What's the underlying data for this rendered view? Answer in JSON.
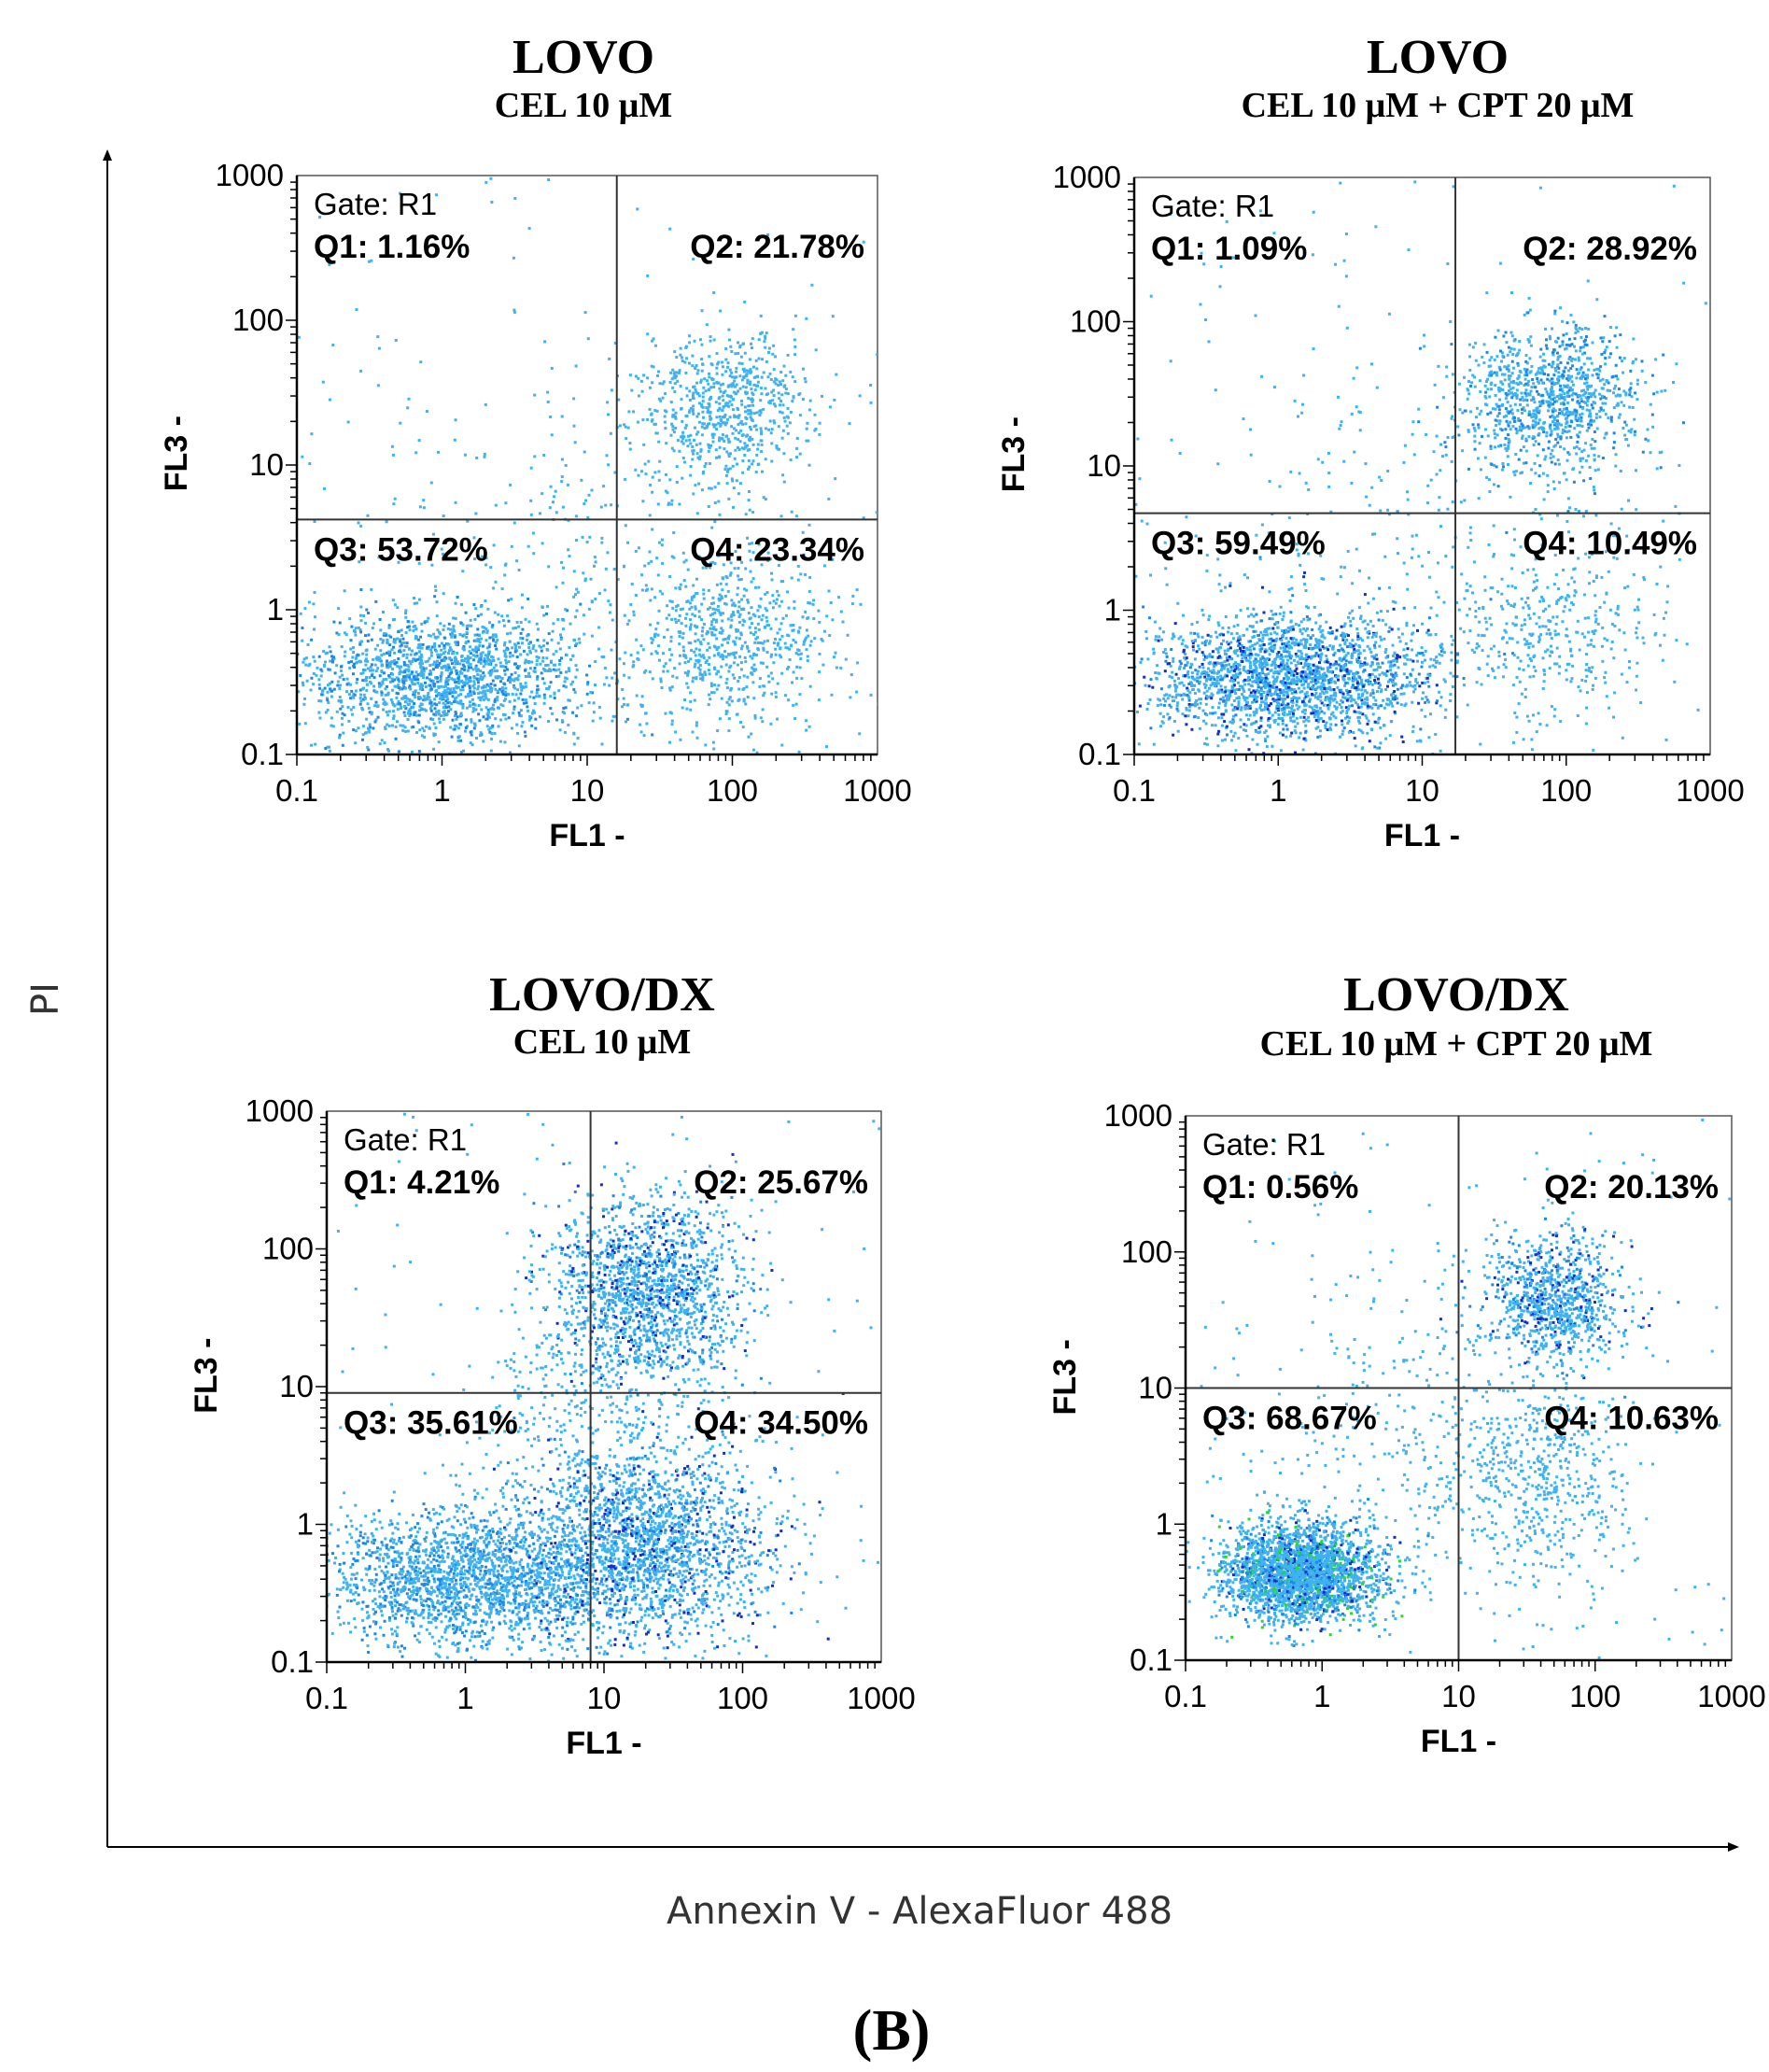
{
  "outer_y_label": "PI",
  "outer_x_label": "Annexin V - AlexaFluor 488",
  "figure_label": "(B)",
  "colors": {
    "dot_light": "#3fb2f0",
    "dot_mid": "#1e88e5",
    "dot_dense": "#1230c8",
    "dot_peak": "#22dd22",
    "axis": "#000000",
    "gate_line": "#333333"
  },
  "chart_data": [
    {
      "type": "scatter",
      "title": "LOVO",
      "subtitle": "CEL 10 μM",
      "xlabel": "FL1  -",
      "ylabel": "FL3  -",
      "xscale": "log",
      "yscale": "log",
      "xlim": [
        0.1,
        1000
      ],
      "ylim": [
        0.1,
        1000
      ],
      "x_ticks": [
        "0.1",
        "1",
        "10",
        "100",
        "1000"
      ],
      "y_ticks": [
        "0.1",
        "1",
        "10",
        "100",
        "1000"
      ],
      "gate": "Gate: R1",
      "gate_x": 16,
      "gate_y": 4.2,
      "quadrants": {
        "q1": "Q1: 1.16%",
        "q2": "Q2: 21.78%",
        "q3": "Q3: 53.72%",
        "q4": "Q4: 23.34%"
      },
      "clusters": [
        {
          "x": 1.0,
          "y": 0.35,
          "sx": 0.5,
          "sy": 0.22,
          "n": 1700,
          "density": 2
        },
        {
          "x": 90,
          "y": 0.6,
          "sx": 0.35,
          "sy": 0.3,
          "n": 700,
          "density": 1
        },
        {
          "x": 90,
          "y": 25,
          "sx": 0.3,
          "sy": 0.25,
          "n": 700,
          "density": 1
        },
        {
          "x": 10,
          "y": 3,
          "sx": 0.8,
          "sy": 0.7,
          "n": 300,
          "density": 0
        }
      ]
    },
    {
      "type": "scatter",
      "title": "LOVO",
      "subtitle": "CEL 10 μM + CPT 20 μM",
      "xlabel": "FL1  -",
      "ylabel": "FL3  -",
      "xscale": "log",
      "yscale": "log",
      "xlim": [
        0.1,
        1000
      ],
      "ylim": [
        0.1,
        1000
      ],
      "x_ticks": [
        "0.1",
        "1",
        "10",
        "100",
        "1000"
      ],
      "y_ticks": [
        "0.1",
        "1",
        "10",
        "100",
        "1000"
      ],
      "gate": "Gate: R1",
      "gate_x": 17,
      "gate_y": 4.7,
      "quadrants": {
        "q1": "Q1: 1.09%",
        "q2": "Q2: 28.92%",
        "q3": "Q3: 59.49%",
        "q4": "Q4: 10.49%"
      },
      "clusters": [
        {
          "x": 1.2,
          "y": 0.35,
          "sx": 0.5,
          "sy": 0.22,
          "n": 2200,
          "density": 3
        },
        {
          "x": 80,
          "y": 30,
          "sx": 0.3,
          "sy": 0.25,
          "n": 1000,
          "density": 2
        },
        {
          "x": 80,
          "y": 0.8,
          "sx": 0.35,
          "sy": 0.35,
          "n": 350,
          "density": 0
        },
        {
          "x": 10,
          "y": 3,
          "sx": 0.8,
          "sy": 0.7,
          "n": 250,
          "density": 0
        }
      ]
    },
    {
      "type": "scatter",
      "title": "LOVO/DX",
      "subtitle": "CEL 10 μM",
      "xlabel": "FL1  -",
      "ylabel": "FL3  -",
      "xscale": "log",
      "yscale": "log",
      "xlim": [
        0.1,
        1000
      ],
      "ylim": [
        0.1,
        1000
      ],
      "x_ticks": [
        "0.1",
        "1",
        "10",
        "100",
        "1000"
      ],
      "y_ticks": [
        "0.1",
        "1",
        "10",
        "100",
        "1000"
      ],
      "gate": "Gate: R1",
      "gate_x": 8,
      "gate_y": 9,
      "quadrants": {
        "q1": "Q1: 4.21%",
        "q2": "Q2: 25.67%",
        "q3": "Q3: 35.61%",
        "q4": "Q4: 34.50%"
      },
      "clusters": [
        {
          "x": 1.0,
          "y": 0.4,
          "sx": 0.55,
          "sy": 0.25,
          "n": 2000,
          "density": 2
        },
        {
          "x": 20,
          "y": 0.7,
          "sx": 0.45,
          "sy": 0.35,
          "n": 2000,
          "density": 3
        },
        {
          "x": 20,
          "y": 50,
          "sx": 0.35,
          "sy": 0.35,
          "n": 1600,
          "density": 3
        },
        {
          "x": 8,
          "y": 5,
          "sx": 0.4,
          "sy": 0.6,
          "n": 500,
          "density": 1
        }
      ]
    },
    {
      "type": "scatter",
      "title": "LOVO/DX",
      "subtitle": "CEL 10 μM + CPT 20 μM",
      "xlabel": "FL1  -",
      "ylabel": "FL3  -",
      "xscale": "log",
      "yscale": "log",
      "xlim": [
        0.1,
        1000
      ],
      "ylim": [
        0.1,
        1000
      ],
      "x_ticks": [
        "0.1",
        "1",
        "10",
        "100",
        "1000"
      ],
      "y_ticks": [
        "0.1",
        "1",
        "10",
        "100",
        "1000"
      ],
      "gate": "Gate: R1",
      "gate_x": 10,
      "gate_y": 10,
      "quadrants": {
        "q1": "Q1: 0.56%",
        "q2": "Q2: 20.13%",
        "q3": "Q3: 68.67%",
        "q4": "Q4: 10.63%"
      },
      "clusters": [
        {
          "x": 0.7,
          "y": 0.45,
          "sx": 0.3,
          "sy": 0.18,
          "n": 2600,
          "density": 4
        },
        {
          "x": 50,
          "y": 45,
          "sx": 0.25,
          "sy": 0.22,
          "n": 900,
          "density": 3
        },
        {
          "x": 40,
          "y": 2,
          "sx": 0.35,
          "sy": 0.4,
          "n": 500,
          "density": 1
        },
        {
          "x": 6,
          "y": 6,
          "sx": 0.7,
          "sy": 0.6,
          "n": 350,
          "density": 0
        }
      ]
    }
  ]
}
